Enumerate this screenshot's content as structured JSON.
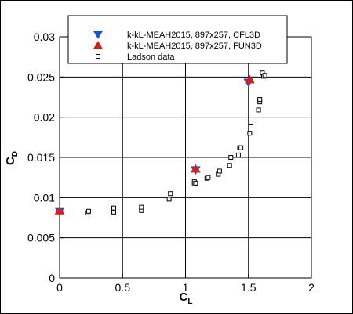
{
  "chart_data": {
    "type": "scatter",
    "title": "",
    "xlabel": "C",
    "xlabel_sub": "L",
    "ylabel": "C",
    "ylabel_sub": "D",
    "xlim": [
      0,
      2
    ],
    "ylim": [
      0,
      0.03
    ],
    "xticks": [
      0,
      0.5,
      1,
      1.5,
      2
    ],
    "xtick_labels": [
      "0",
      "0.5",
      "1",
      "1.5",
      "2"
    ],
    "yticks": [
      0,
      0.005,
      0.01,
      0.015,
      0.02,
      0.025,
      0.03
    ],
    "ytick_labels": [
      "0",
      "0.005",
      "0.01",
      "0.015",
      "0.02",
      "0.025",
      "0.03"
    ],
    "grid": true,
    "legend_position": "top-center",
    "series": [
      {
        "name": "k-kL-MEAH2015, 897x257, CFL3D",
        "marker": "triangle-down",
        "color": "#1e4fd8",
        "x": [
          0.0,
          1.08,
          1.5
        ],
        "y": [
          0.0083,
          0.0134,
          0.0243
        ]
      },
      {
        "name": "k-kL-MEAH2015, 897x257, FUN3D",
        "marker": "triangle-up",
        "color": "#d81e1e",
        "x": [
          0.0,
          1.08,
          1.51
        ],
        "y": [
          0.0084,
          0.0136,
          0.0247
        ]
      },
      {
        "name": "Ladson data",
        "marker": "square-open",
        "color": "#000000",
        "x": [
          0.0,
          0.22,
          0.23,
          0.43,
          0.43,
          0.65,
          0.65,
          0.87,
          0.88,
          1.07,
          1.07,
          1.08,
          1.17,
          1.18,
          1.26,
          1.27,
          1.35,
          1.36,
          1.42,
          1.43,
          1.44,
          1.51,
          1.52,
          1.58,
          1.59,
          1.59,
          1.61,
          1.62,
          1.63
        ],
        "y": [
          0.0083,
          0.0081,
          0.0083,
          0.0082,
          0.0087,
          0.0084,
          0.0088,
          0.0098,
          0.0105,
          0.012,
          0.0117,
          0.0118,
          0.0124,
          0.0125,
          0.0129,
          0.0133,
          0.014,
          0.015,
          0.0153,
          0.0162,
          0.0162,
          0.018,
          0.0189,
          0.0209,
          0.0219,
          0.0222,
          0.0255,
          0.0251,
          0.0252
        ]
      }
    ]
  }
}
